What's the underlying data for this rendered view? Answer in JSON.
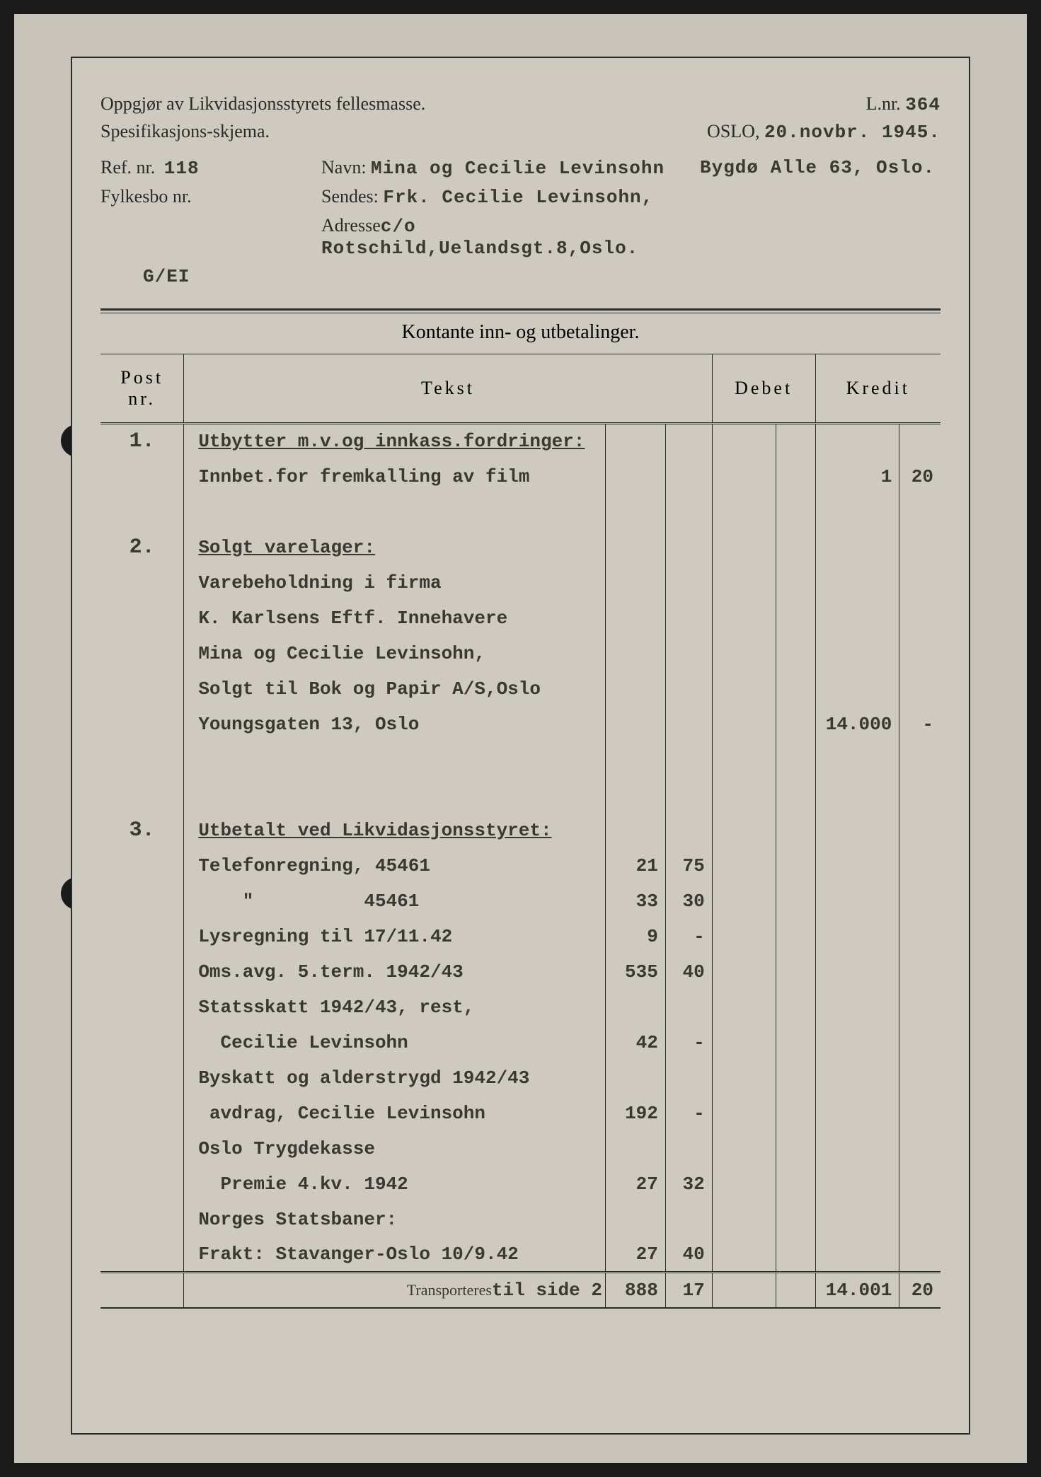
{
  "header": {
    "title1": "Oppgjør av Likvidasjonsstyrets fellesmasse.",
    "title2": "Spesifikasjons-skjema.",
    "lnr_label": "L.nr.",
    "lnr_value": "364",
    "oslo_label": "OSLO,",
    "oslo_date": "20.novbr. 1945.",
    "ref_label": "Ref. nr.",
    "ref_value": "118",
    "navn_label": "Navn:",
    "navn_value": "Mina og Cecilie Levinsohn",
    "addr_right": "Bygdø Alle 63, Oslo.",
    "fylkesbo_label": "Fylkesbo nr.",
    "sendes_label": "Sendes:",
    "sendes_value": "Frk. Cecilie Levinsohn,",
    "adresse_label": "Adresse",
    "adresse_value": "c/o Rotschild,Uelandsgt.8,Oslo.",
    "code": "G/EI"
  },
  "section_title": "Kontante inn- og utbetalinger.",
  "columns": {
    "post": "Post nr.",
    "tekst": "Tekst",
    "debet": "Debet",
    "kredit": "Kredit"
  },
  "rows": [
    {
      "post": "1.",
      "tekst": "Utbytter m.v.og innkass.fordringer:",
      "s1": "",
      "s2": "",
      "d1": "",
      "d2": "",
      "k1": "",
      "k2": "",
      "section": true
    },
    {
      "post": "",
      "tekst": "Innbet.for fremkalling av film",
      "s1": "",
      "s2": "",
      "d1": "",
      "d2": "",
      "k1": "1",
      "k2": "20"
    },
    {
      "post": "",
      "tekst": "",
      "s1": "",
      "s2": "",
      "d1": "",
      "d2": "",
      "k1": "",
      "k2": ""
    },
    {
      "post": "2.",
      "tekst": "Solgt varelager:",
      "s1": "",
      "s2": "",
      "d1": "",
      "d2": "",
      "k1": "",
      "k2": "",
      "section": true
    },
    {
      "post": "",
      "tekst": "Varebeholdning i firma",
      "s1": "",
      "s2": "",
      "d1": "",
      "d2": "",
      "k1": "",
      "k2": ""
    },
    {
      "post": "",
      "tekst": "K. Karlsens Eftf. Innehavere",
      "s1": "",
      "s2": "",
      "d1": "",
      "d2": "",
      "k1": "",
      "k2": ""
    },
    {
      "post": "",
      "tekst": "Mina og Cecilie Levinsohn,",
      "s1": "",
      "s2": "",
      "d1": "",
      "d2": "",
      "k1": "",
      "k2": ""
    },
    {
      "post": "",
      "tekst": "Solgt til Bok og Papir A/S,Oslo",
      "s1": "",
      "s2": "",
      "d1": "",
      "d2": "",
      "k1": "",
      "k2": ""
    },
    {
      "post": "",
      "tekst": "Youngsgaten 13, Oslo",
      "s1": "",
      "s2": "",
      "d1": "",
      "d2": "",
      "k1": "14.000",
      "k2": "-"
    },
    {
      "post": "",
      "tekst": "",
      "s1": "",
      "s2": "",
      "d1": "",
      "d2": "",
      "k1": "",
      "k2": ""
    },
    {
      "post": "",
      "tekst": "",
      "s1": "",
      "s2": "",
      "d1": "",
      "d2": "",
      "k1": "",
      "k2": ""
    },
    {
      "post": "3.",
      "tekst": "Utbetalt ved Likvidasjonsstyret:",
      "s1": "",
      "s2": "",
      "d1": "",
      "d2": "",
      "k1": "",
      "k2": "",
      "section": true
    },
    {
      "post": "",
      "tekst": "Telefonregning, 45461",
      "s1": "21",
      "s2": "75",
      "d1": "",
      "d2": "",
      "k1": "",
      "k2": ""
    },
    {
      "post": "",
      "tekst": "    \"          45461",
      "s1": "33",
      "s2": "30",
      "d1": "",
      "d2": "",
      "k1": "",
      "k2": ""
    },
    {
      "post": "",
      "tekst": "Lysregning til 17/11.42",
      "s1": "9",
      "s2": "-",
      "d1": "",
      "d2": "",
      "k1": "",
      "k2": ""
    },
    {
      "post": "",
      "tekst": "Oms.avg. 5.term. 1942/43",
      "s1": "535",
      "s2": "40",
      "d1": "",
      "d2": "",
      "k1": "",
      "k2": ""
    },
    {
      "post": "",
      "tekst": "Statsskatt 1942/43, rest,",
      "s1": "",
      "s2": "",
      "d1": "",
      "d2": "",
      "k1": "",
      "k2": ""
    },
    {
      "post": "",
      "tekst": "  Cecilie Levinsohn",
      "s1": "42",
      "s2": "-",
      "d1": "",
      "d2": "",
      "k1": "",
      "k2": ""
    },
    {
      "post": "",
      "tekst": "Byskatt og alderstrygd 1942/43",
      "s1": "",
      "s2": "",
      "d1": "",
      "d2": "",
      "k1": "",
      "k2": ""
    },
    {
      "post": "",
      "tekst": " avdrag, Cecilie Levinsohn",
      "s1": "192",
      "s2": "-",
      "d1": "",
      "d2": "",
      "k1": "",
      "k2": ""
    },
    {
      "post": "",
      "tekst": "Oslo Trygdekasse",
      "s1": "",
      "s2": "",
      "d1": "",
      "d2": "",
      "k1": "",
      "k2": ""
    },
    {
      "post": "",
      "tekst": "  Premie 4.kv. 1942",
      "s1": "27",
      "s2": "32",
      "d1": "",
      "d2": "",
      "k1": "",
      "k2": ""
    },
    {
      "post": "",
      "tekst": "Norges Statsbaner:",
      "s1": "",
      "s2": "",
      "d1": "",
      "d2": "",
      "k1": "",
      "k2": ""
    },
    {
      "post": "",
      "tekst": "Frakt: Stavanger-Oslo 10/9.42",
      "s1": "27",
      "s2": "40",
      "d1": "",
      "d2": "",
      "k1": "",
      "k2": "",
      "underline": true
    }
  ],
  "footer": {
    "label": "Transporteres",
    "typed": "til side 2",
    "s1": "888",
    "s2": "17",
    "k1": "14.001",
    "k2": "20"
  },
  "style": {
    "background": "#cecabf",
    "text_color": "#2a2a2a",
    "typed_color": "#3a3832",
    "border_color": "#2a2a2a",
    "typed_font": "Courier New",
    "printed_font": "Times New Roman",
    "base_fontsize_pt": 20
  }
}
